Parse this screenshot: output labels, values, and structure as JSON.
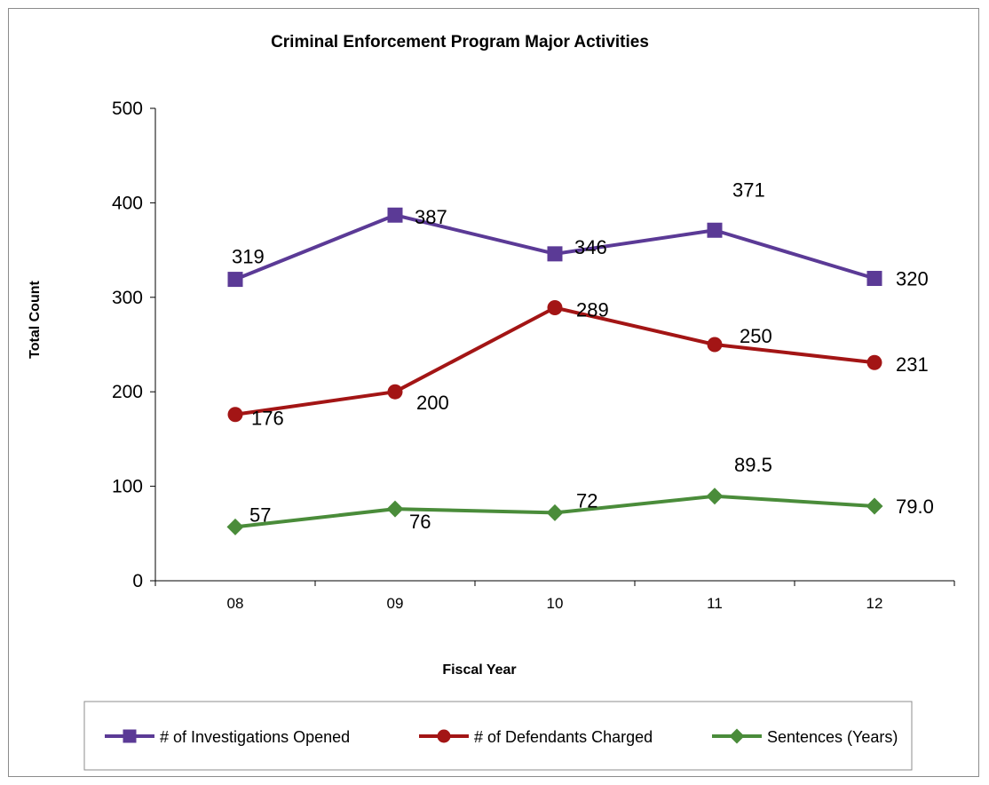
{
  "chart_data": {
    "type": "line",
    "title": "Criminal Enforcement Program Major Activities",
    "xlabel": "Fiscal Year",
    "ylabel": "Total Count",
    "categories": [
      "08",
      "09",
      "10",
      "11",
      "12"
    ],
    "ylim": [
      0,
      500
    ],
    "yticks": [
      0,
      100,
      200,
      300,
      400,
      500
    ],
    "grid": false,
    "legend_position": "bottom",
    "series": [
      {
        "name": "# of Investigations Opened",
        "values": [
          319,
          387,
          346,
          371,
          320
        ],
        "labels": [
          "319",
          "387",
          "346",
          "371",
          "320"
        ],
        "color": "#5b3a96",
        "marker": "square"
      },
      {
        "name": "# of Defendants Charged",
        "values": [
          176,
          200,
          289,
          250,
          231
        ],
        "labels": [
          "176",
          "200",
          "289",
          "250",
          "231"
        ],
        "color": "#a31515",
        "marker": "circle"
      },
      {
        "name": "Sentences (Years)",
        "values": [
          57,
          76,
          72,
          89.5,
          79.0
        ],
        "labels": [
          "57",
          "76",
          "72",
          "89.5",
          "79.0"
        ],
        "color": "#4a8c3a",
        "marker": "diamond"
      }
    ]
  }
}
